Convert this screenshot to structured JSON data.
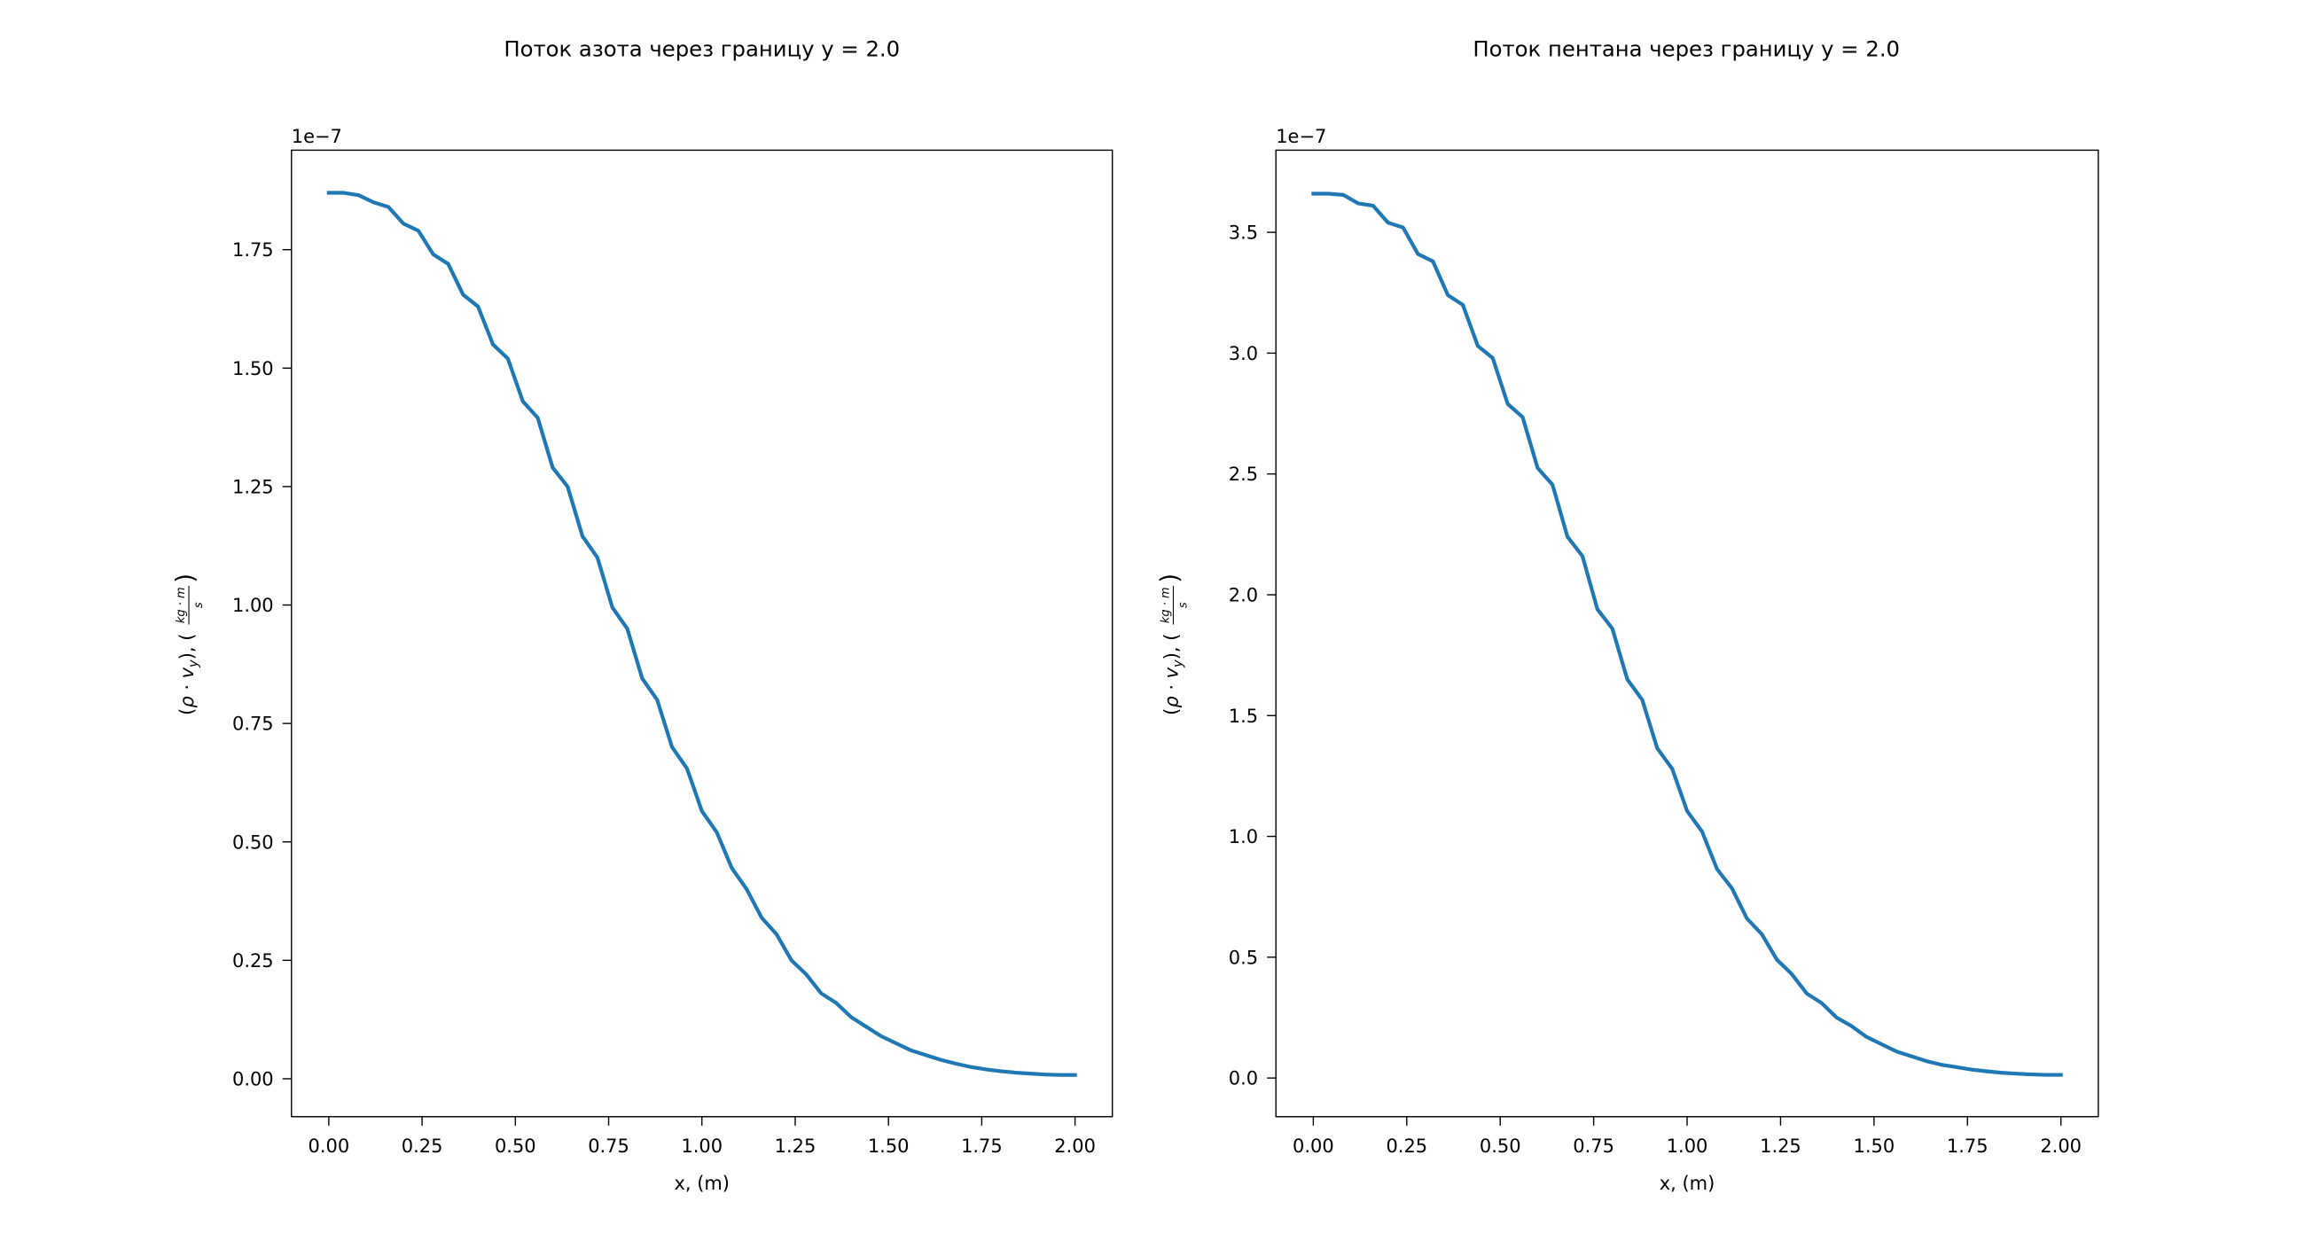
{
  "chart_data": [
    {
      "type": "line",
      "title": "Поток азота через границу y = 2.0",
      "xlabel": "x, (m)",
      "ylabel_parts": {
        "open": "(",
        "rho": "ρ",
        "dot": "·",
        "v": "v",
        "sub": "y",
        "close": "), (",
        "num": "kg · m",
        "den": "s",
        "end": ")"
      },
      "offset_text": "1e−7",
      "xlim": [
        -0.1,
        2.1
      ],
      "ylim": [
        -0.08,
        1.96
      ],
      "xticks": [
        0.0,
        0.25,
        0.5,
        0.75,
        1.0,
        1.25,
        1.5,
        1.75,
        2.0
      ],
      "xtick_labels": [
        "0.00",
        "0.25",
        "0.50",
        "0.75",
        "1.00",
        "1.25",
        "1.50",
        "1.75",
        "2.00"
      ],
      "yticks": [
        0.0,
        0.25,
        0.5,
        0.75,
        1.0,
        1.25,
        1.5,
        1.75
      ],
      "ytick_labels": [
        "0.00",
        "0.25",
        "0.50",
        "0.75",
        "1.00",
        "1.25",
        "1.50",
        "1.75"
      ],
      "series": [
        {
          "color": "#1f77b4",
          "x": [
            0.0,
            0.04,
            0.08,
            0.12,
            0.16,
            0.2,
            0.24,
            0.28,
            0.32,
            0.36,
            0.4,
            0.44,
            0.48,
            0.52,
            0.56,
            0.6,
            0.64,
            0.68,
            0.72,
            0.76,
            0.8,
            0.84,
            0.88,
            0.92,
            0.96,
            1.0,
            1.04,
            1.08,
            1.12,
            1.16,
            1.2,
            1.24,
            1.28,
            1.32,
            1.36,
            1.4,
            1.44,
            1.48,
            1.52,
            1.56,
            1.6,
            1.64,
            1.68,
            1.72,
            1.76,
            1.8,
            1.84,
            1.88,
            1.92,
            1.96,
            2.0
          ],
          "y": [
            1.87,
            1.87,
            1.865,
            1.85,
            1.84,
            1.805,
            1.79,
            1.74,
            1.72,
            1.655,
            1.63,
            1.55,
            1.52,
            1.43,
            1.395,
            1.29,
            1.25,
            1.145,
            1.1,
            0.995,
            0.95,
            0.845,
            0.8,
            0.7,
            0.655,
            0.565,
            0.52,
            0.445,
            0.4,
            0.34,
            0.305,
            0.25,
            0.22,
            0.18,
            0.16,
            0.13,
            0.11,
            0.09,
            0.075,
            0.06,
            0.05,
            0.04,
            0.032,
            0.025,
            0.02,
            0.016,
            0.013,
            0.011,
            0.009,
            0.008,
            0.008
          ]
        }
      ]
    },
    {
      "type": "line",
      "title": "Поток пентана через границу y = 2.0",
      "xlabel": "x, (m)",
      "ylabel_parts": {
        "open": "(",
        "rho": "ρ",
        "dot": "·",
        "v": "v",
        "sub": "y",
        "close": "), (",
        "num": "kg · m",
        "den": "s",
        "end": ")"
      },
      "offset_text": "1e−7",
      "xlim": [
        -0.1,
        2.1
      ],
      "ylim": [
        -0.16,
        3.84
      ],
      "xticks": [
        0.0,
        0.25,
        0.5,
        0.75,
        1.0,
        1.25,
        1.5,
        1.75,
        2.0
      ],
      "xtick_labels": [
        "0.00",
        "0.25",
        "0.50",
        "0.75",
        "1.00",
        "1.25",
        "1.50",
        "1.75",
        "2.00"
      ],
      "yticks": [
        0.0,
        0.5,
        1.0,
        1.5,
        2.0,
        2.5,
        3.0,
        3.5
      ],
      "ytick_labels": [
        "0.0",
        "0.5",
        "1.0",
        "1.5",
        "2.0",
        "2.5",
        "3.0",
        "3.5"
      ],
      "series": [
        {
          "color": "#1f77b4",
          "x": [
            0.0,
            0.04,
            0.08,
            0.12,
            0.16,
            0.2,
            0.24,
            0.28,
            0.32,
            0.36,
            0.4,
            0.44,
            0.48,
            0.52,
            0.56,
            0.6,
            0.64,
            0.68,
            0.72,
            0.76,
            0.8,
            0.84,
            0.88,
            0.92,
            0.96,
            1.0,
            1.04,
            1.08,
            1.12,
            1.16,
            1.2,
            1.24,
            1.28,
            1.32,
            1.36,
            1.4,
            1.44,
            1.48,
            1.52,
            1.56,
            1.6,
            1.64,
            1.68,
            1.72,
            1.76,
            1.8,
            1.84,
            1.88,
            1.92,
            1.96,
            2.0
          ],
          "y": [
            3.66,
            3.66,
            3.655,
            3.62,
            3.61,
            3.54,
            3.52,
            3.41,
            3.38,
            3.24,
            3.2,
            3.03,
            2.98,
            2.79,
            2.735,
            2.525,
            2.455,
            2.24,
            2.16,
            1.94,
            1.86,
            1.65,
            1.565,
            1.365,
            1.28,
            1.105,
            1.02,
            0.865,
            0.785,
            0.66,
            0.595,
            0.49,
            0.43,
            0.35,
            0.31,
            0.25,
            0.215,
            0.17,
            0.14,
            0.11,
            0.09,
            0.07,
            0.055,
            0.045,
            0.035,
            0.028,
            0.022,
            0.018,
            0.015,
            0.013,
            0.013
          ]
        }
      ]
    }
  ]
}
